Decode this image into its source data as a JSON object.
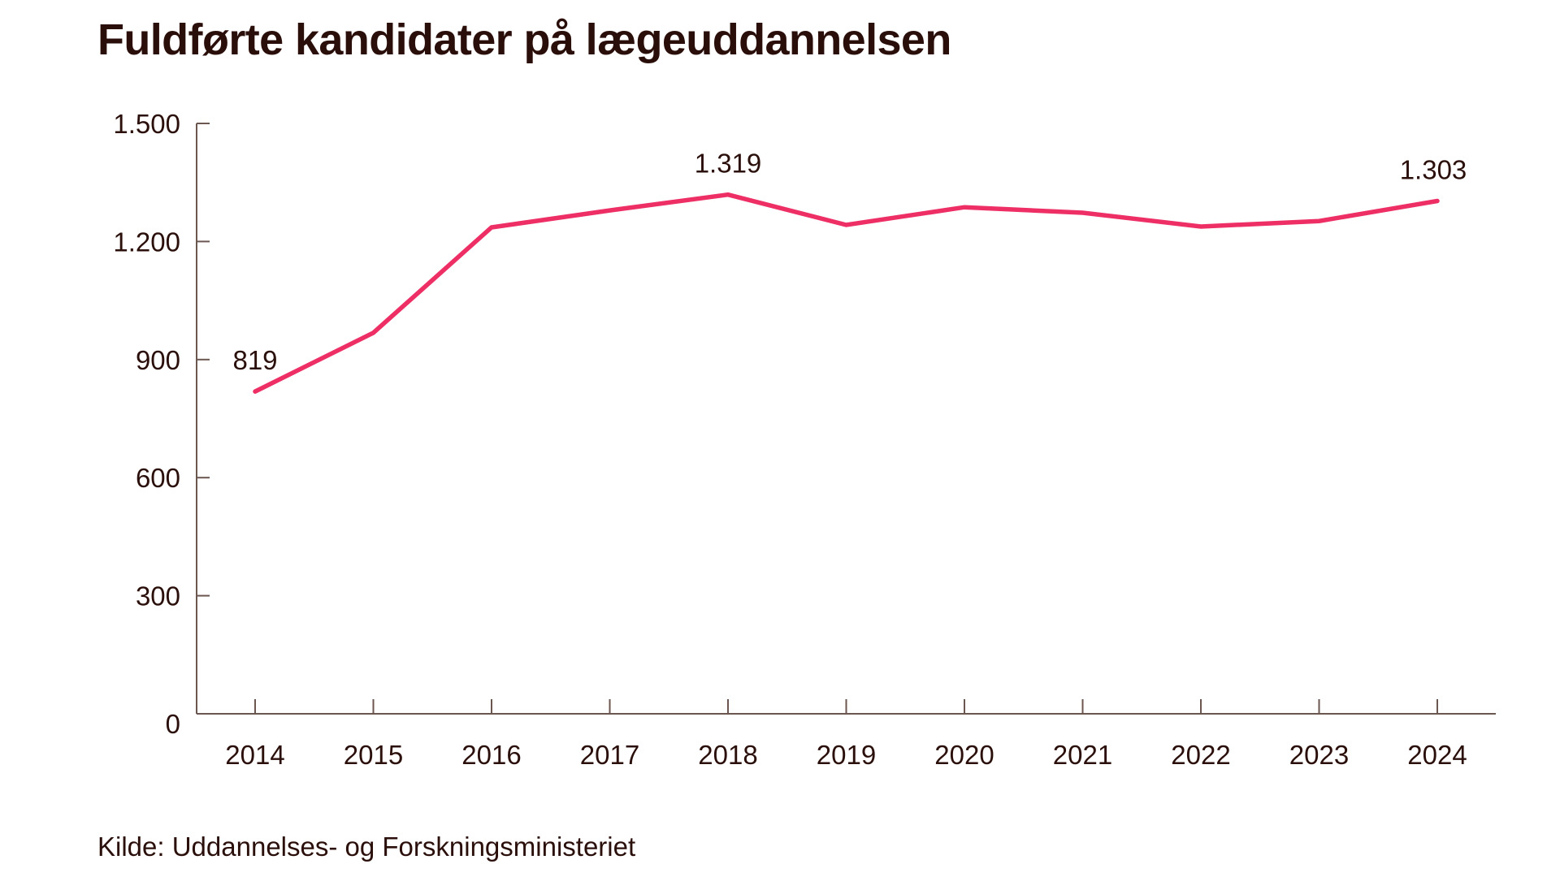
{
  "chart_data": {
    "type": "line",
    "title": "Fuldførte kandidater på lægeuddannelsen",
    "source": "Kilde: Uddannelses- og Forskningsministeriet",
    "xlabel": "",
    "ylabel": "",
    "categories": [
      "2014",
      "2015",
      "2016",
      "2017",
      "2018",
      "2019",
      "2020",
      "2021",
      "2022",
      "2023",
      "2024"
    ],
    "series": [
      {
        "name": "Fuldførte kandidater",
        "color": "#ee2f66",
        "values": [
          819,
          968,
          1236,
          1279,
          1319,
          1242,
          1287,
          1273,
          1238,
          1252,
          1303
        ]
      }
    ],
    "ylim": [
      0,
      1500
    ],
    "yticks": [
      0,
      300,
      600,
      900,
      1200,
      1500
    ],
    "ytick_labels": [
      "0",
      "300",
      "600",
      "900",
      "1.200",
      "1.500"
    ],
    "data_labels": [
      {
        "category": "2014",
        "text": "819"
      },
      {
        "category": "2018",
        "text": "1.319"
      },
      {
        "category": "2024",
        "text": "1.303"
      }
    ],
    "grid": false,
    "legend": "none"
  }
}
